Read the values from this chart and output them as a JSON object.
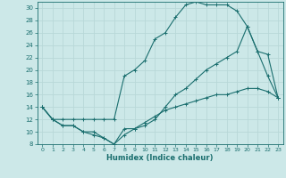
{
  "xlabel": "Humidex (Indice chaleur)",
  "bg_color": "#cce8e8",
  "grid_color": "#b8d8d8",
  "line_color": "#1a6e6e",
  "xlim": [
    -0.5,
    23.5
  ],
  "ylim": [
    8,
    31
  ],
  "xticks": [
    0,
    1,
    2,
    3,
    4,
    5,
    6,
    7,
    8,
    9,
    10,
    11,
    12,
    13,
    14,
    15,
    16,
    17,
    18,
    19,
    20,
    21,
    22,
    23
  ],
  "yticks": [
    8,
    10,
    12,
    14,
    16,
    18,
    20,
    22,
    24,
    26,
    28,
    30
  ],
  "curve_top_x": [
    0,
    1,
    2,
    3,
    4,
    5,
    6,
    7,
    8,
    9,
    10,
    11,
    12,
    13,
    14,
    15,
    16,
    17,
    18,
    19,
    20,
    21,
    22,
    23
  ],
  "curve_top_y": [
    14,
    12,
    12,
    12,
    12,
    12,
    12,
    12,
    19,
    20,
    21.5,
    25,
    26,
    28.5,
    30.5,
    31,
    30.5,
    30.5,
    30.5,
    29.5,
    27,
    23,
    19,
    15.5
  ],
  "curve_mid_x": [
    0,
    1,
    2,
    3,
    4,
    5,
    6,
    7,
    8,
    9,
    10,
    11,
    12,
    13,
    14,
    15,
    16,
    17,
    18,
    19,
    20,
    21,
    22,
    23
  ],
  "curve_mid_y": [
    14,
    12,
    11,
    11,
    10,
    10,
    9,
    8,
    10.5,
    10.5,
    11,
    12,
    14,
    16,
    17,
    18.5,
    20,
    21,
    22,
    23,
    27,
    23,
    22.5,
    15.5
  ],
  "curve_bot_x": [
    0,
    1,
    2,
    3,
    4,
    5,
    6,
    7,
    8,
    9,
    10,
    11,
    12,
    13,
    14,
    15,
    16,
    17,
    18,
    19,
    20,
    21,
    22,
    23
  ],
  "curve_bot_y": [
    14,
    12,
    11,
    11,
    10,
    9.5,
    9,
    8,
    9.5,
    10.5,
    11.5,
    12.5,
    13.5,
    14,
    14.5,
    15,
    15.5,
    16,
    16,
    16.5,
    17,
    17,
    16.5,
    15.5
  ]
}
